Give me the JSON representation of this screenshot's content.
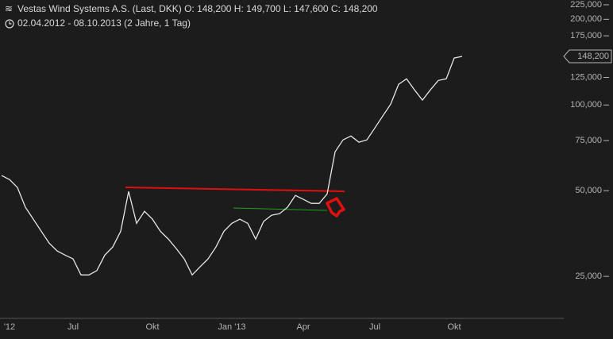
{
  "chart_data": {
    "type": "line",
    "title": "Vestas Wind Systems A.S. (Last, DKK)  O: 148,200  H: 149,700  L: 147,600  C: 148,200",
    "subtitle": "02.04.2012 - 08.10.2013 (2 Jahre, 1 Tag)",
    "price_tag": "148,200",
    "categories": [
      null,
      "'12",
      null,
      null,
      null,
      null,
      null,
      null,
      null,
      "Jul",
      null,
      null,
      null,
      null,
      null,
      null,
      null,
      null,
      null,
      "Okt",
      null,
      null,
      null,
      null,
      null,
      null,
      null,
      null,
      null,
      "Jan '13",
      null,
      null,
      null,
      null,
      null,
      null,
      null,
      null,
      "Apr",
      null,
      null,
      null,
      null,
      null,
      null,
      null,
      null,
      "Jul",
      null,
      null,
      null,
      null,
      null,
      null,
      null,
      null,
      null,
      "Okt",
      null
    ],
    "series": [
      {
        "color": "#e6e6e6",
        "values": [
          56500,
          54700,
          51300,
          43700,
          39700,
          36000,
          32700,
          30700,
          29700,
          28800,
          25300,
          25300,
          26200,
          29700,
          31700,
          36000,
          49700,
          38400,
          42300,
          39700,
          36000,
          33800,
          31300,
          28800,
          25300,
          27000,
          28800,
          31700,
          36000,
          38400,
          39700,
          38400,
          33800,
          39000,
          41000,
          41500,
          43700,
          48100,
          46600,
          45100,
          45100,
          48700,
          68500,
          75400,
          77800,
          74000,
          75400,
          83000,
          91400,
          100700,
          118200,
          123600,
          113000,
          104000,
          113000,
          122000,
          123600,
          146200,
          148200
        ]
      }
    ],
    "log_scale": true,
    "ylim": [
      17800,
      233800
    ],
    "yticks": [
      {
        "value": 25000,
        "label": "25,000"
      },
      {
        "value": 50000,
        "label": "50,000"
      },
      {
        "value": 75000,
        "label": "75,000"
      },
      {
        "value": 100000,
        "label": "100,000"
      },
      {
        "value": 125000,
        "label": "125,000"
      },
      {
        "value": 175000,
        "label": "175,000"
      },
      {
        "value": 200000,
        "label": "200,000"
      },
      {
        "value": 225000,
        "label": "225,000"
      }
    ]
  }
}
